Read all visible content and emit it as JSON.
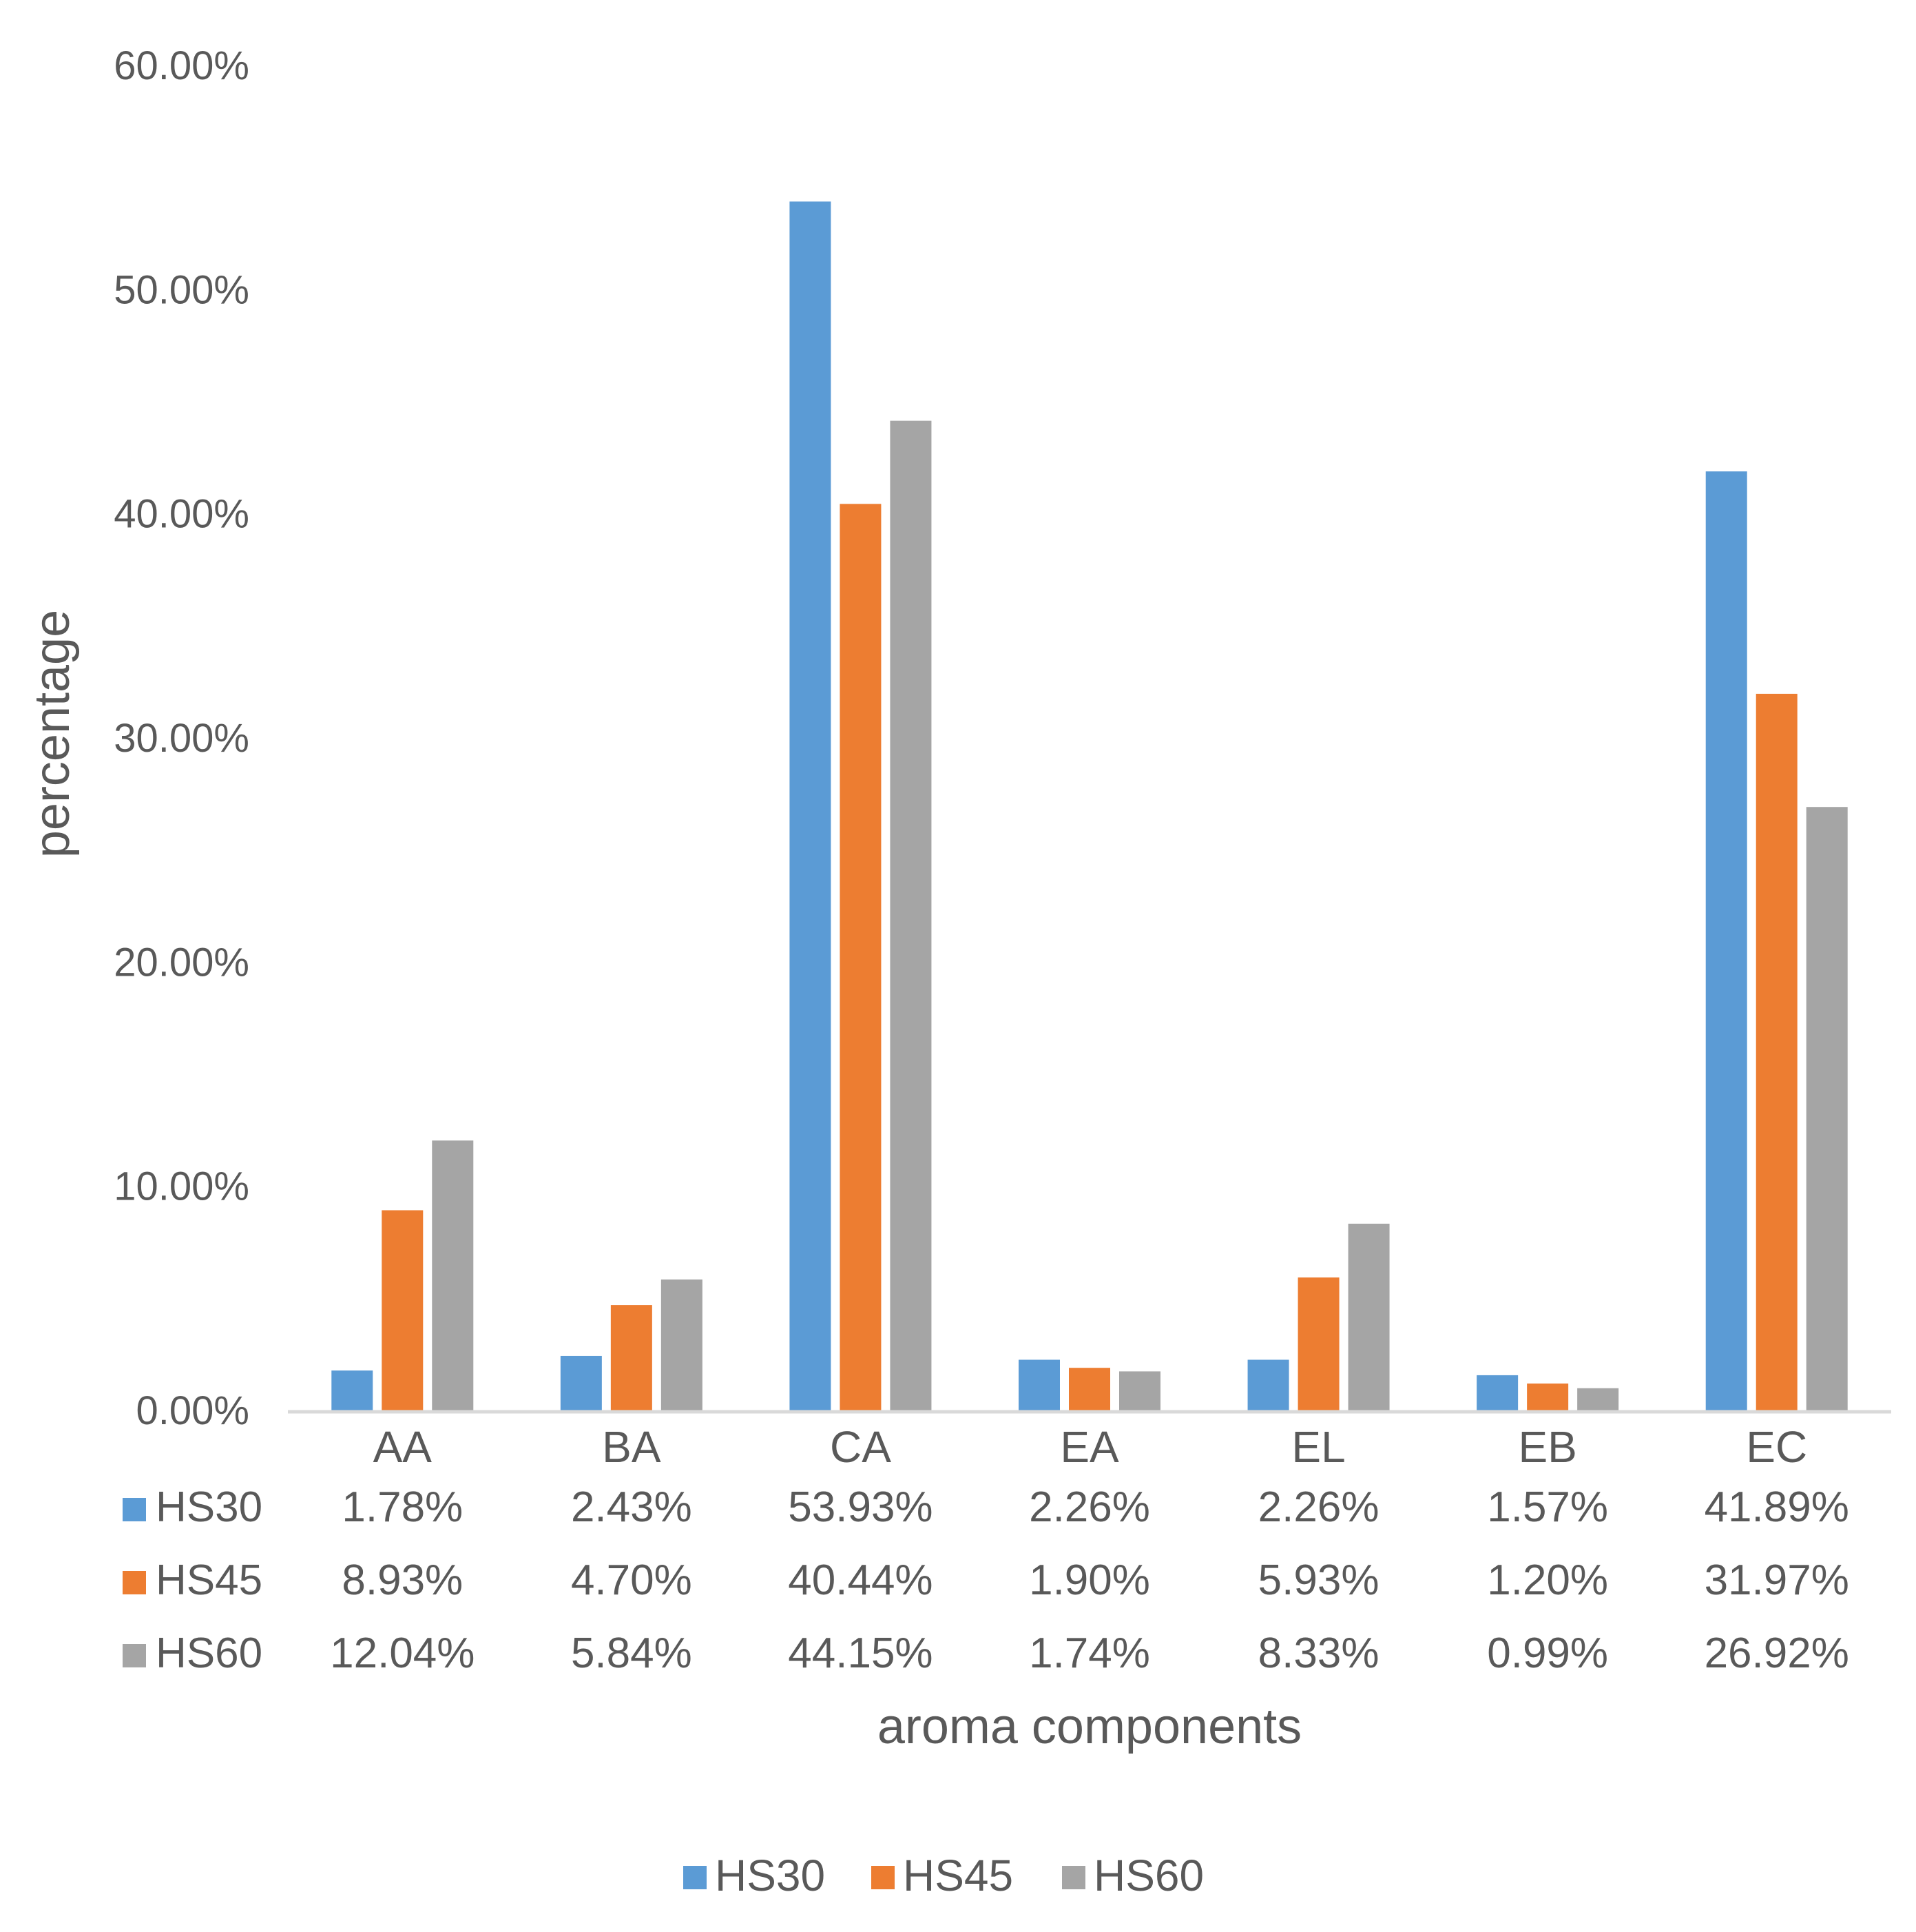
{
  "chart_data": {
    "type": "bar",
    "categories": [
      "AA",
      "BA",
      "CA",
      "EA",
      "EL",
      "EB",
      "EC"
    ],
    "series": [
      {
        "name": "HS30",
        "color": "#5B9BD5",
        "values": [
          1.78,
          2.43,
          53.93,
          2.26,
          2.26,
          1.57,
          41.89
        ],
        "labels": [
          "1.78%",
          "2.43%",
          "53.93%",
          "2.26%",
          "2.26%",
          "1.57%",
          "41.89%"
        ]
      },
      {
        "name": "HS45",
        "color": "#ED7D31",
        "values": [
          8.93,
          4.7,
          40.44,
          1.9,
          5.93,
          1.2,
          31.97
        ],
        "labels": [
          "8.93%",
          "4.70%",
          "40.44%",
          "1.90%",
          "5.93%",
          "1.20%",
          "31.97%"
        ]
      },
      {
        "name": "HS60",
        "color": "#A5A5A5",
        "values": [
          12.04,
          5.84,
          44.15,
          1.74,
          8.33,
          0.99,
          26.92
        ],
        "labels": [
          "12.04%",
          "5.84%",
          "44.15%",
          "1.74%",
          "8.33%",
          "0.99%",
          "26.92%"
        ]
      }
    ],
    "xlabel": "aroma components",
    "ylabel": "percentage",
    "ylim": [
      0,
      60
    ],
    "yticks": [
      0,
      10,
      20,
      30,
      40,
      50,
      60
    ],
    "ytick_labels": [
      "0.00%",
      "10.00%",
      "20.00%",
      "30.00%",
      "40.00%",
      "50.00%",
      "60.00%"
    ],
    "grid": false,
    "data_table": true,
    "legend": "bottom-center"
  }
}
